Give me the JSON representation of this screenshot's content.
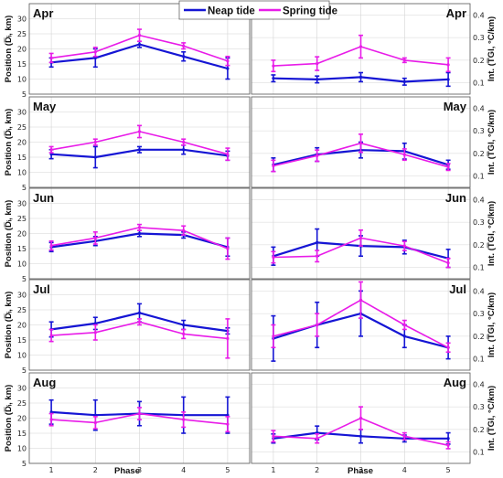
{
  "legend": {
    "items": [
      {
        "label": "Neap tide",
        "color": "#1515d4"
      },
      {
        "label": "Spring tide",
        "color": "#e81ce8"
      }
    ],
    "placement": "top-center"
  },
  "xlabel": "Phase",
  "left_ylabel": "Position (D̅ᵢ, km)",
  "right_ylabel": "Int. (T̅GI, °C/km)",
  "chart_data": [
    {
      "type": "line",
      "row": "Apr",
      "side": "left",
      "x": [
        1,
        2,
        3,
        4,
        5
      ],
      "xlim": [
        0.5,
        5.5
      ],
      "ylim": [
        5,
        35
      ],
      "yticks": [
        5,
        10,
        15,
        20,
        25,
        30
      ],
      "xticks": [
        1,
        2,
        3,
        4,
        5
      ],
      "grid": true,
      "series": [
        {
          "name": "Neap tide",
          "values": [
            15.5,
            17,
            21.5,
            17.5,
            13.5
          ],
          "err": [
            1.5,
            3,
            1,
            1.5,
            3.5
          ]
        },
        {
          "name": "Spring tide",
          "values": [
            17,
            19,
            24.5,
            21,
            16
          ],
          "err": [
            1.5,
            1.5,
            2,
            1,
            1.5
          ]
        }
      ]
    },
    {
      "type": "line",
      "row": "Apr",
      "side": "right",
      "x": [
        1,
        2,
        3,
        4,
        5
      ],
      "xlim": [
        0.5,
        5.5
      ],
      "ylim": [
        0.05,
        0.45
      ],
      "yticks": [
        0.1,
        0.2,
        0.3,
        0.4
      ],
      "xticks": [
        1,
        2,
        3,
        4,
        5
      ],
      "grid": true,
      "series": [
        {
          "name": "Neap tide",
          "values": [
            0.12,
            0.115,
            0.125,
            0.105,
            0.115
          ],
          "err": [
            0.015,
            0.015,
            0.02,
            0.015,
            0.03
          ]
        },
        {
          "name": "Spring tide",
          "values": [
            0.175,
            0.185,
            0.26,
            0.2,
            0.18
          ],
          "err": [
            0.025,
            0.03,
            0.05,
            0.01,
            0.03
          ]
        }
      ]
    },
    {
      "type": "line",
      "row": "May",
      "side": "left",
      "x": [
        1,
        2,
        3,
        4,
        5
      ],
      "xlim": [
        0.5,
        5.5
      ],
      "ylim": [
        5,
        35
      ],
      "yticks": [
        5,
        10,
        15,
        20,
        25,
        30
      ],
      "xticks": [
        1,
        2,
        3,
        4,
        5
      ],
      "grid": true,
      "series": [
        {
          "name": "Neap tide",
          "values": [
            16,
            15,
            17.5,
            17.5,
            15.5
          ],
          "err": [
            1.5,
            3.5,
            1,
            1.5,
            1.5
          ]
        },
        {
          "name": "Spring tide",
          "values": [
            17.5,
            20,
            23.5,
            20,
            16
          ],
          "err": [
            1,
            1,
            2,
            1,
            2
          ]
        }
      ]
    },
    {
      "type": "line",
      "row": "May",
      "side": "right",
      "x": [
        1,
        2,
        3,
        4,
        5
      ],
      "xlim": [
        0.5,
        5.5
      ],
      "ylim": [
        0.05,
        0.45
      ],
      "yticks": [
        0.1,
        0.2,
        0.3,
        0.4
      ],
      "xticks": [
        1,
        2,
        3,
        4,
        5
      ],
      "grid": true,
      "series": [
        {
          "name": "Neap tide",
          "values": [
            0.15,
            0.195,
            0.215,
            0.21,
            0.15
          ],
          "err": [
            0.03,
            0.03,
            0.035,
            0.035,
            0.02
          ]
        },
        {
          "name": "Spring tide",
          "values": [
            0.145,
            0.19,
            0.245,
            0.195,
            0.14
          ],
          "err": [
            0.025,
            0.025,
            0.04,
            0.025,
            0.015
          ]
        }
      ]
    },
    {
      "type": "line",
      "row": "Jun",
      "side": "left",
      "x": [
        1,
        2,
        3,
        4,
        5
      ],
      "xlim": [
        0.5,
        5.5
      ],
      "ylim": [
        5,
        35
      ],
      "yticks": [
        5,
        10,
        15,
        20,
        25,
        30
      ],
      "xticks": [
        1,
        2,
        3,
        4,
        5
      ],
      "grid": true,
      "series": [
        {
          "name": "Neap tide",
          "values": [
            15.5,
            17.5,
            20,
            19.5,
            15.5
          ],
          "err": [
            1.5,
            1.5,
            1,
            1,
            3
          ]
        },
        {
          "name": "Spring tide",
          "values": [
            16,
            18.5,
            22,
            21,
            15
          ],
          "err": [
            1.5,
            2,
            1,
            1.5,
            3.5
          ]
        }
      ]
    },
    {
      "type": "line",
      "row": "Jun",
      "side": "right",
      "x": [
        1,
        2,
        3,
        4,
        5
      ],
      "xlim": [
        0.5,
        5.5
      ],
      "ylim": [
        0.05,
        0.45
      ],
      "yticks": [
        0.1,
        0.2,
        0.3,
        0.4
      ],
      "xticks": [
        1,
        2,
        3,
        4,
        5
      ],
      "grid": true,
      "series": [
        {
          "name": "Neap tide",
          "values": [
            0.15,
            0.21,
            0.195,
            0.19,
            0.14
          ],
          "err": [
            0.04,
            0.06,
            0.045,
            0.03,
            0.04
          ]
        },
        {
          "name": "Spring tide",
          "values": [
            0.145,
            0.15,
            0.23,
            0.195,
            0.12
          ],
          "err": [
            0.025,
            0.025,
            0.035,
            0.02,
            0.02
          ]
        }
      ]
    },
    {
      "type": "line",
      "row": "Jul",
      "side": "left",
      "x": [
        1,
        2,
        3,
        4,
        5
      ],
      "xlim": [
        0.5,
        5.5
      ],
      "ylim": [
        5,
        35
      ],
      "yticks": [
        5,
        10,
        15,
        20,
        25,
        30
      ],
      "xticks": [
        1,
        2,
        3,
        4,
        5
      ],
      "grid": true,
      "series": [
        {
          "name": "Neap tide",
          "values": [
            18.5,
            20.5,
            24,
            20,
            18
          ],
          "err": [
            2.5,
            2,
            3,
            1.5,
            1
          ]
        },
        {
          "name": "Spring tide",
          "values": [
            16.5,
            17.5,
            21,
            17,
            15.5
          ],
          "err": [
            2,
            2.5,
            1,
            1.5,
            6.5
          ]
        }
      ]
    },
    {
      "type": "line",
      "row": "Jul",
      "side": "right",
      "x": [
        1,
        2,
        3,
        4,
        5
      ],
      "xlim": [
        0.5,
        5.5
      ],
      "ylim": [
        0.05,
        0.45
      ],
      "yticks": [
        0.1,
        0.2,
        0.3,
        0.4
      ],
      "xticks": [
        1,
        2,
        3,
        4,
        5
      ],
      "grid": true,
      "series": [
        {
          "name": "Neap tide",
          "values": [
            0.19,
            0.25,
            0.3,
            0.2,
            0.15
          ],
          "err": [
            0.1,
            0.1,
            0.1,
            0.05,
            0.05
          ]
        },
        {
          "name": "Spring tide",
          "values": [
            0.2,
            0.25,
            0.36,
            0.25,
            0.15
          ],
          "err": [
            0.05,
            0.05,
            0.08,
            0.02,
            0.02
          ]
        }
      ]
    },
    {
      "type": "line",
      "row": "Aug",
      "side": "left",
      "x": [
        1,
        2,
        3,
        4,
        5
      ],
      "xlim": [
        0.5,
        5.5
      ],
      "ylim": [
        5,
        35
      ],
      "yticks": [
        5,
        10,
        15,
        20,
        25,
        30
      ],
      "xticks": [
        1,
        2,
        3,
        4,
        5
      ],
      "grid": true,
      "series": [
        {
          "name": "Neap tide",
          "values": [
            22,
            21,
            21.5,
            21,
            21
          ],
          "err": [
            4,
            5,
            4,
            6,
            6
          ]
        },
        {
          "name": "Spring tide",
          "values": [
            19.5,
            18.5,
            21.5,
            19.5,
            18
          ],
          "err": [
            2,
            2,
            2,
            2.5,
            2.5
          ]
        }
      ]
    },
    {
      "type": "line",
      "row": "Aug",
      "side": "right",
      "x": [
        1,
        2,
        3,
        4,
        5
      ],
      "xlim": [
        0.5,
        5.5
      ],
      "ylim": [
        0.05,
        0.45
      ],
      "yticks": [
        0.1,
        0.2,
        0.3,
        0.4
      ],
      "xticks": [
        1,
        2,
        3,
        4,
        5
      ],
      "grid": true,
      "series": [
        {
          "name": "Neap tide",
          "values": [
            0.16,
            0.185,
            0.17,
            0.16,
            0.16
          ],
          "err": [
            0.02,
            0.03,
            0.03,
            0.015,
            0.025
          ]
        },
        {
          "name": "Spring tide",
          "values": [
            0.17,
            0.16,
            0.25,
            0.17,
            0.13
          ],
          "err": [
            0.025,
            0.02,
            0.05,
            0.015,
            0.015
          ]
        }
      ]
    }
  ],
  "month_labels": [
    "Apr",
    "May",
    "Jun",
    "Jul",
    "Aug"
  ]
}
